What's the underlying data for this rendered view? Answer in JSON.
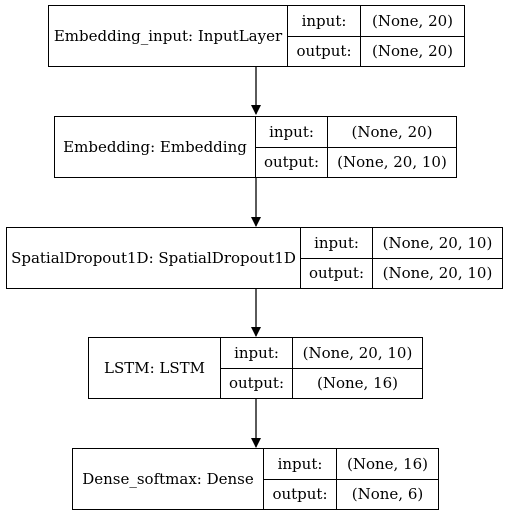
{
  "nodes": [
    {
      "name": "Embedding_input: InputLayer",
      "input_label": "input:",
      "input_value": "(None, 20)",
      "output_label": "output:",
      "output_value": "(None, 20)"
    },
    {
      "name": "Embedding: Embedding",
      "input_label": "input:",
      "input_value": "(None, 20)",
      "output_label": "output:",
      "output_value": "(None, 20, 10)"
    },
    {
      "name": "SpatialDropout1D: SpatialDropout1D",
      "input_label": "input:",
      "input_value": "(None, 20, 10)",
      "output_label": "output:",
      "output_value": "(None, 20, 10)"
    },
    {
      "name": "LSTM: LSTM",
      "input_label": "input:",
      "input_value": "(None, 20, 10)",
      "output_label": "output:",
      "output_value": "(None, 16)"
    },
    {
      "name": "Dense_softmax: Dense",
      "input_label": "input:",
      "input_value": "(None, 16)",
      "output_label": "output:",
      "output_value": "(None, 6)"
    }
  ]
}
